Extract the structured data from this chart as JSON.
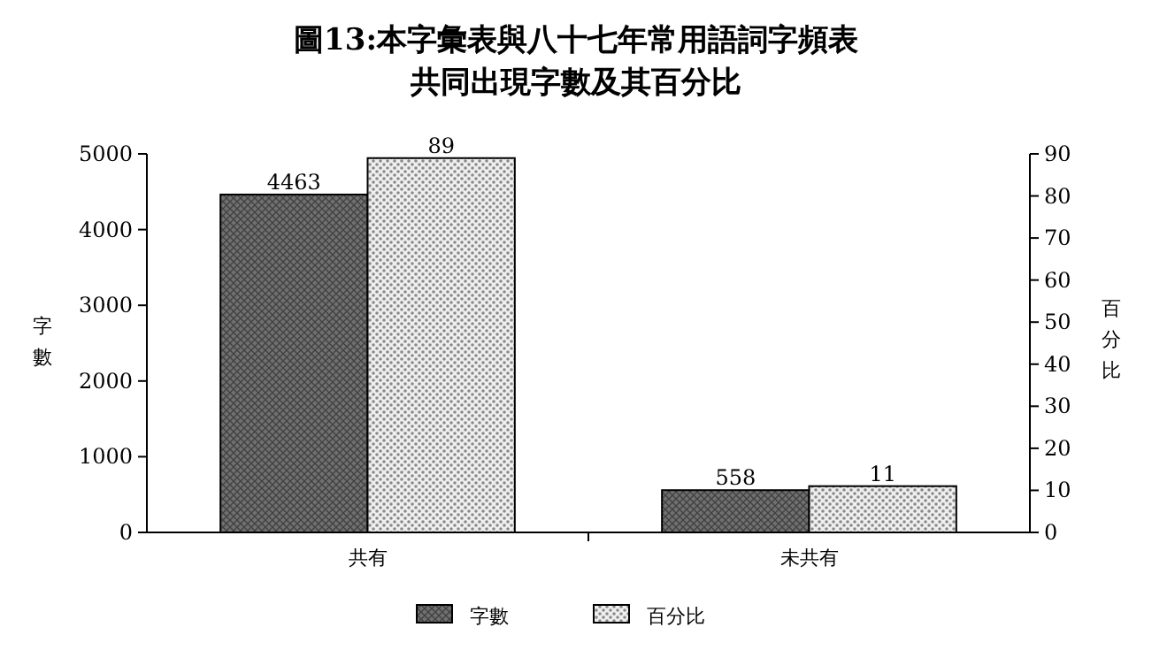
{
  "chart_data": {
    "type": "bar",
    "title": "圖13:本字彙表與八十七年常用語詞字頻表",
    "subtitle": "共同出現字數及其百分比",
    "categories": [
      "共有",
      "未共有"
    ],
    "series": [
      {
        "name": "字數",
        "color": "#707070",
        "values": [
          4463,
          558
        ]
      },
      {
        "name": "百分比",
        "color": "#d8d8d8",
        "values": [
          89,
          11
        ],
        "axis": "y2"
      }
    ],
    "ylabel": "字數",
    "y2label": "百分比",
    "ylim": [
      0,
      5000
    ],
    "yticks": [
      0,
      1000,
      2000,
      3000,
      4000,
      5000
    ],
    "y2lim": [
      0,
      90
    ],
    "y2ticks": [
      0,
      10,
      20,
      30,
      40,
      50,
      60,
      70,
      80,
      90
    ],
    "legend": "bottom",
    "data_labels": true
  }
}
